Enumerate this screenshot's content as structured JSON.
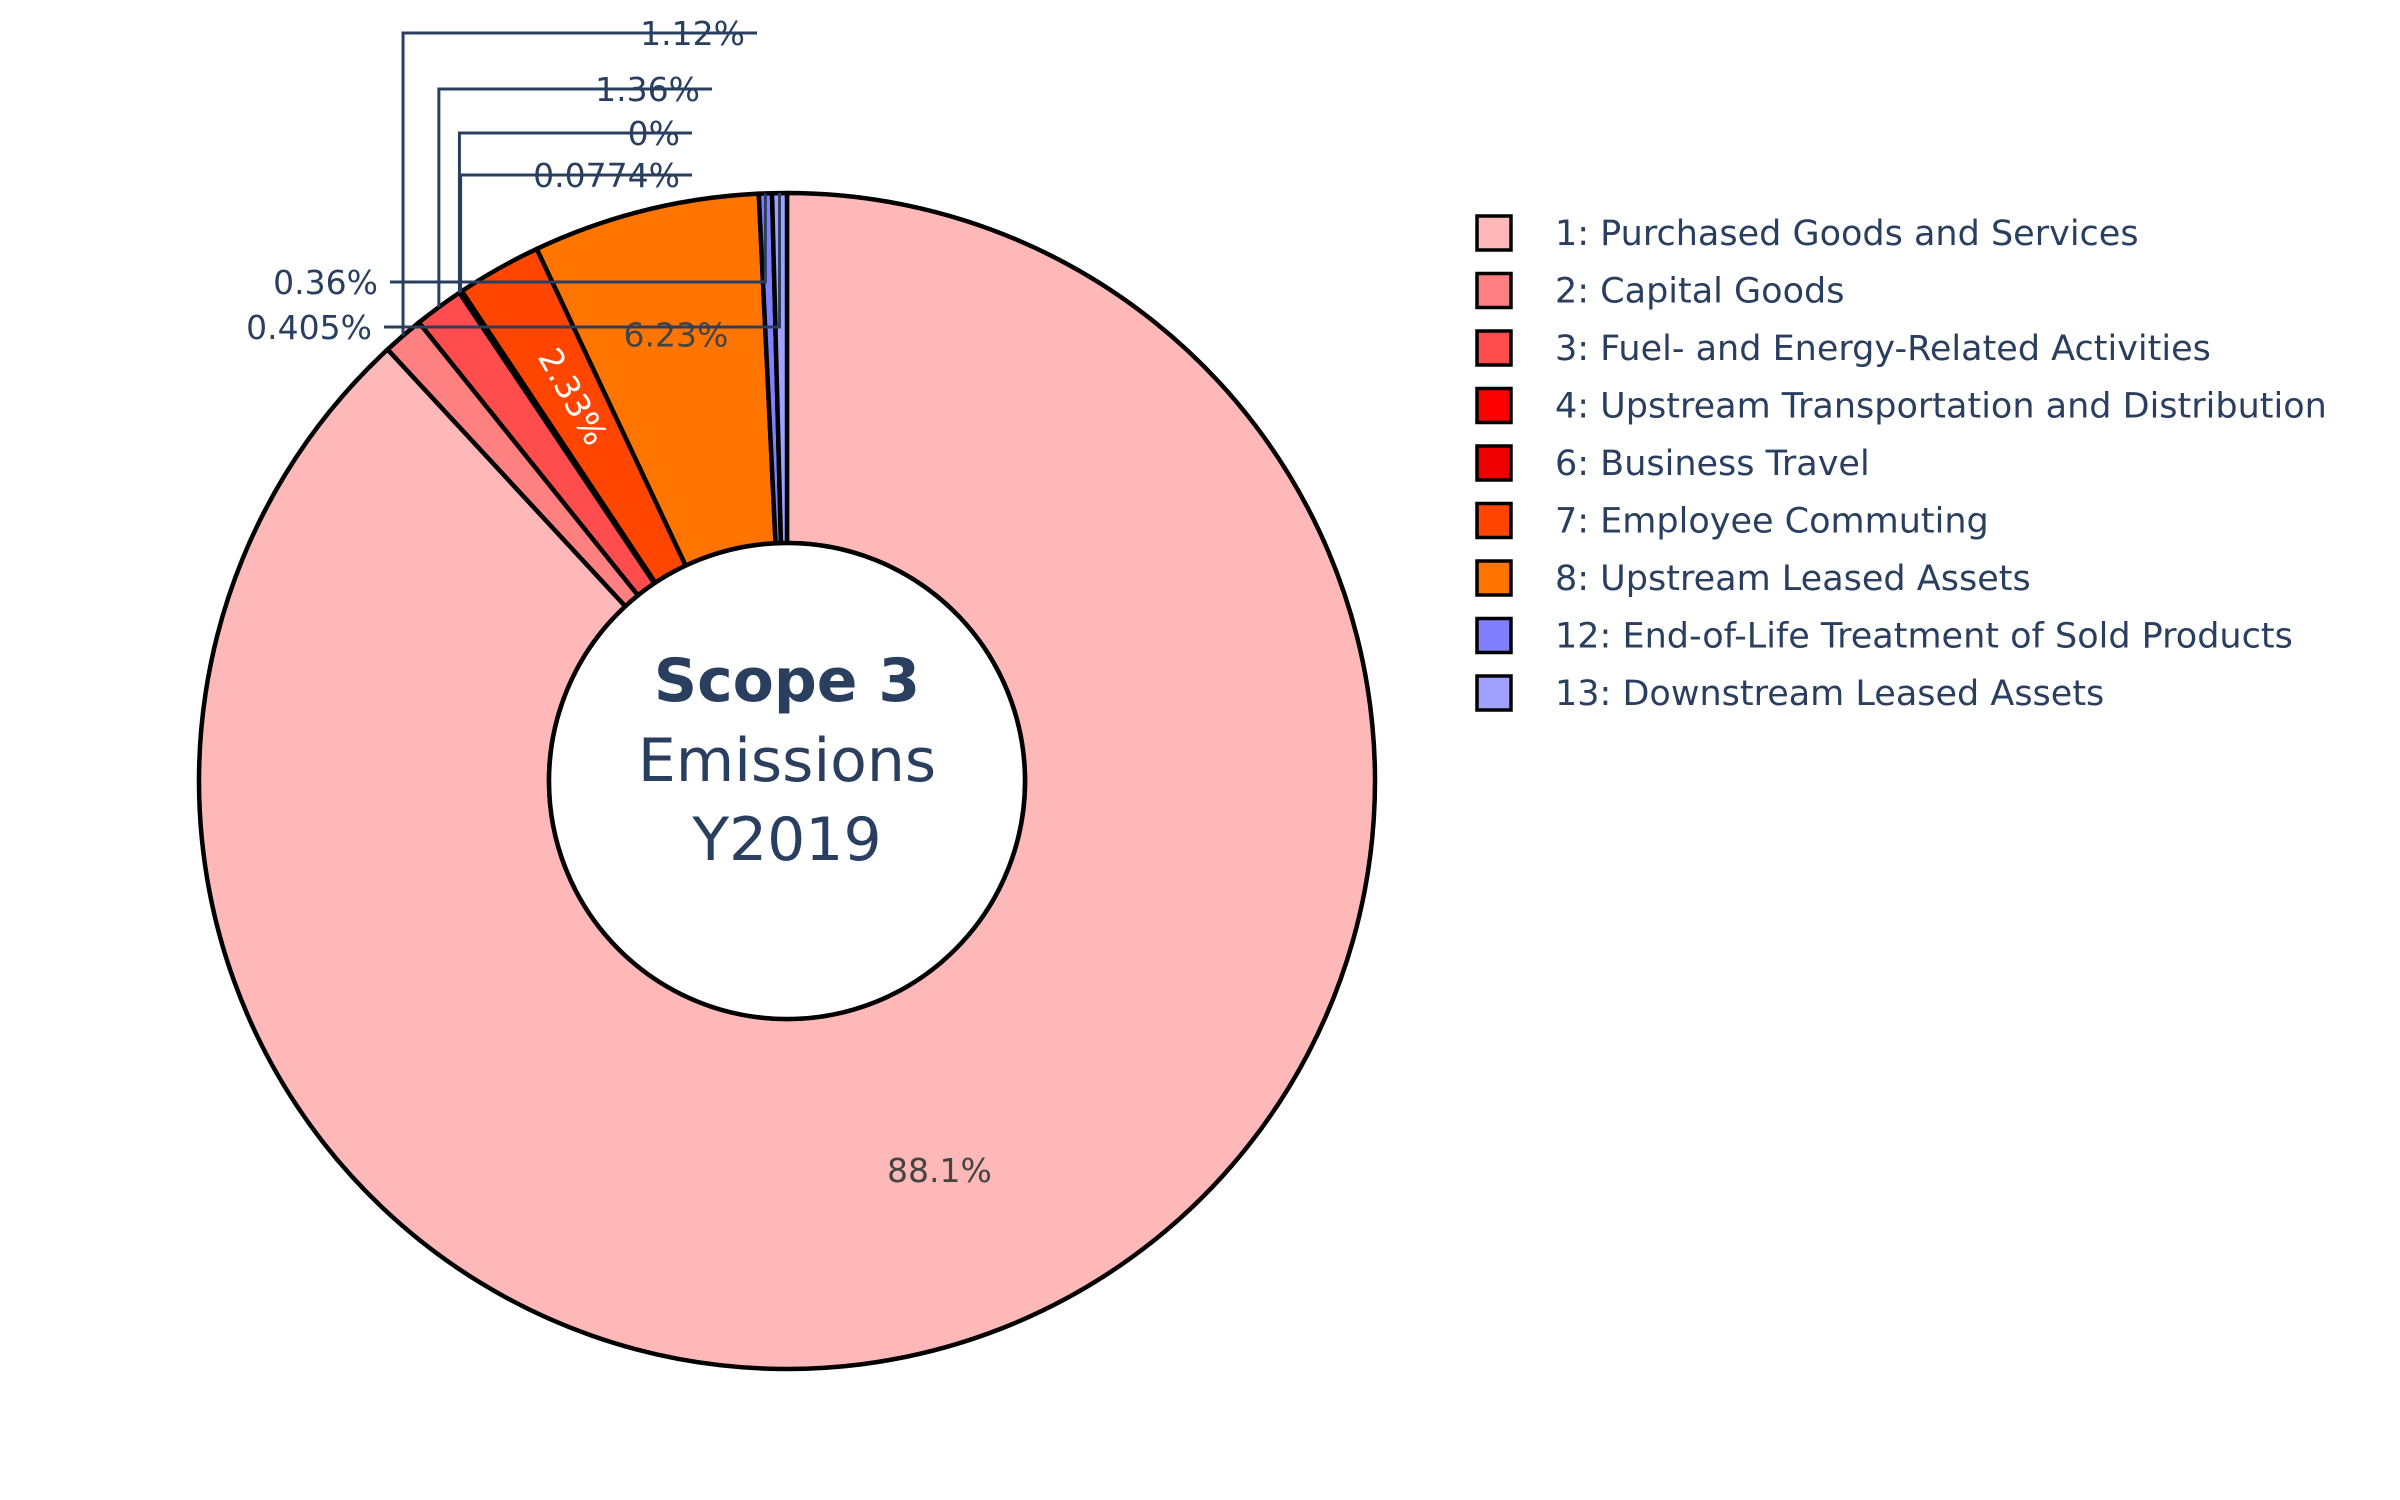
{
  "chart_data": {
    "type": "pie",
    "hole": true,
    "center_text": {
      "line1": "Scope 3",
      "line2": "Emissions",
      "line3": "Y2019"
    },
    "legend_position": "right",
    "slices": [
      {
        "label": "1: Purchased Goods and Services",
        "value": 88.1,
        "text": "88.1%",
        "color": "#ffb8b8",
        "text_position": "inside",
        "text_color": "#444444"
      },
      {
        "label": "2: Capital Goods",
        "value": 1.12,
        "text": "1.12%",
        "color": "#ff8080",
        "text_position": "outside"
      },
      {
        "label": "3: Fuel- and Energy-Related Activities",
        "value": 1.36,
        "text": "1.36%",
        "color": "#ff4d4d",
        "text_position": "outside"
      },
      {
        "label": "4: Upstream Transportation and Distribution",
        "value": 0,
        "text": "0%",
        "color": "#ff0000",
        "text_position": "outside"
      },
      {
        "label": "6: Business Travel",
        "value": 0.0774,
        "text": "0.0774%",
        "color": "#ee0000",
        "text_position": "outside"
      },
      {
        "label": "7: Employee Commuting",
        "value": 2.33,
        "text": "2.33%",
        "color": "#ff4500",
        "text_position": "inside",
        "text_color": "#ffffff"
      },
      {
        "label": "8: Upstream Leased Assets",
        "value": 6.23,
        "text": "6.23%",
        "color": "#ff7500",
        "text_position": "inside",
        "text_color": "#444444"
      },
      {
        "label": "12: End-of-Life Treatment of Sold Products",
        "value": 0.36,
        "text": "0.36%",
        "color": "#8080ff",
        "text_position": "outside"
      },
      {
        "label": "13: Downstream Leased Assets",
        "value": 0.405,
        "text": "0.405%",
        "color": "#a0a0ff",
        "text_position": "outside"
      }
    ]
  }
}
